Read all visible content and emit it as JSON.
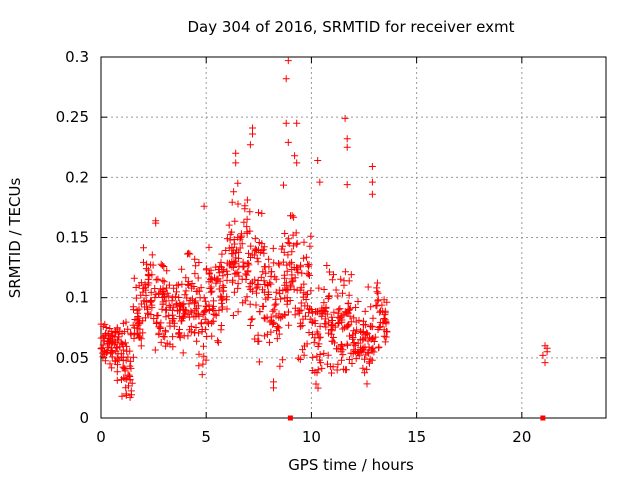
{
  "chart_data": {
    "type": "scatter",
    "title": "Day 304 of 2016, SRMTID for receiver exmt",
    "xlabel": "GPS time / hours",
    "ylabel": "SRMTID / TECUs",
    "xlim": [
      0,
      24
    ],
    "ylim": [
      0,
      0.3
    ],
    "x_ticks": [
      0,
      5,
      10,
      15,
      20
    ],
    "x_tick_labels": [
      "0",
      "5",
      "10",
      "15",
      "20"
    ],
    "y_ticks": [
      0,
      0.05,
      0.1,
      0.15,
      0.2,
      0.25,
      0.3
    ],
    "y_tick_labels": [
      "0",
      "0.05",
      "0.1",
      "0.15",
      "0.2",
      "0.25",
      "0.3"
    ],
    "grid": true,
    "marker": "+",
    "color": "#ff0000",
    "series": [
      {
        "name": "SRMTID",
        "density_profile": [
          {
            "x_start": 0.0,
            "x_end": 0.5,
            "base": 0.062,
            "spread": 0.014,
            "count": 40
          },
          {
            "x_start": 0.5,
            "x_end": 1.0,
            "base": 0.058,
            "spread": 0.016,
            "count": 40
          },
          {
            "x_start": 1.0,
            "x_end": 1.5,
            "base": 0.05,
            "spread": 0.02,
            "count": 40
          },
          {
            "x_start": 1.5,
            "x_end": 2.0,
            "base": 0.085,
            "spread": 0.02,
            "count": 36
          },
          {
            "x_start": 2.0,
            "x_end": 2.5,
            "base": 0.105,
            "spread": 0.02,
            "count": 36
          },
          {
            "x_start": 2.5,
            "x_end": 3.0,
            "base": 0.09,
            "spread": 0.025,
            "count": 36
          },
          {
            "x_start": 3.0,
            "x_end": 3.5,
            "base": 0.085,
            "spread": 0.022,
            "count": 36
          },
          {
            "x_start": 3.5,
            "x_end": 4.0,
            "base": 0.09,
            "spread": 0.02,
            "count": 36
          },
          {
            "x_start": 4.0,
            "x_end": 4.5,
            "base": 0.1,
            "spread": 0.025,
            "count": 36
          },
          {
            "x_start": 4.5,
            "x_end": 5.0,
            "base": 0.08,
            "spread": 0.03,
            "count": 36
          },
          {
            "x_start": 5.0,
            "x_end": 5.5,
            "base": 0.1,
            "spread": 0.035,
            "count": 36
          },
          {
            "x_start": 5.5,
            "x_end": 6.0,
            "base": 0.11,
            "spread": 0.03,
            "count": 36
          },
          {
            "x_start": 6.0,
            "x_end": 6.5,
            "base": 0.13,
            "spread": 0.03,
            "count": 36
          },
          {
            "x_start": 6.5,
            "x_end": 7.0,
            "base": 0.14,
            "spread": 0.035,
            "count": 36
          },
          {
            "x_start": 7.0,
            "x_end": 7.5,
            "base": 0.12,
            "spread": 0.035,
            "count": 36
          },
          {
            "x_start": 7.5,
            "x_end": 8.0,
            "base": 0.11,
            "spread": 0.04,
            "count": 36
          },
          {
            "x_start": 8.0,
            "x_end": 8.5,
            "base": 0.1,
            "spread": 0.035,
            "count": 36
          },
          {
            "x_start": 8.5,
            "x_end": 9.0,
            "base": 0.11,
            "spread": 0.045,
            "count": 36
          },
          {
            "x_start": 9.0,
            "x_end": 9.5,
            "base": 0.12,
            "spread": 0.04,
            "count": 36
          },
          {
            "x_start": 9.5,
            "x_end": 10.0,
            "base": 0.1,
            "spread": 0.04,
            "count": 36
          },
          {
            "x_start": 10.0,
            "x_end": 10.5,
            "base": 0.07,
            "spread": 0.03,
            "count": 36
          },
          {
            "x_start": 10.5,
            "x_end": 11.0,
            "base": 0.08,
            "spread": 0.03,
            "count": 36
          },
          {
            "x_start": 11.0,
            "x_end": 11.5,
            "base": 0.075,
            "spread": 0.03,
            "count": 36
          },
          {
            "x_start": 11.5,
            "x_end": 12.0,
            "base": 0.07,
            "spread": 0.03,
            "count": 36
          },
          {
            "x_start": 12.0,
            "x_end": 12.5,
            "base": 0.062,
            "spread": 0.02,
            "count": 36
          },
          {
            "x_start": 12.5,
            "x_end": 13.0,
            "base": 0.065,
            "spread": 0.025,
            "count": 36
          },
          {
            "x_start": 13.0,
            "x_end": 13.6,
            "base": 0.085,
            "spread": 0.02,
            "count": 36
          }
        ],
        "notable_points": [
          [
            8.9,
            0.297
          ],
          [
            8.8,
            0.282
          ],
          [
            8.8,
            0.245
          ],
          [
            9.3,
            0.245
          ],
          [
            11.6,
            0.249
          ],
          [
            7.2,
            0.241
          ],
          [
            7.2,
            0.236
          ],
          [
            8.9,
            0.229
          ],
          [
            11.7,
            0.232
          ],
          [
            11.7,
            0.225
          ],
          [
            6.4,
            0.22
          ],
          [
            9.2,
            0.218
          ],
          [
            9.3,
            0.212
          ],
          [
            10.3,
            0.214
          ],
          [
            12.9,
            0.209
          ],
          [
            6.4,
            0.212
          ],
          [
            7.1,
            0.227
          ],
          [
            11.7,
            0.194
          ],
          [
            12.9,
            0.196
          ],
          [
            12.9,
            0.186
          ],
          [
            10.4,
            0.196
          ],
          [
            2.6,
            0.164
          ],
          [
            2.6,
            0.162
          ],
          [
            4.9,
            0.176
          ],
          [
            6.5,
            0.195
          ],
          [
            6.3,
            0.188
          ],
          [
            1.0,
            0.018
          ],
          [
            1.2,
            0.02
          ],
          [
            8.2,
            0.025
          ],
          [
            8.2,
            0.03
          ],
          [
            21.1,
            0.06
          ],
          [
            21.2,
            0.058
          ],
          [
            21.0,
            0.052
          ],
          [
            21.1,
            0.046
          ],
          [
            21.2,
            0.055
          ]
        ],
        "zero_markers": [
          9.0,
          21.0
        ]
      }
    ]
  }
}
